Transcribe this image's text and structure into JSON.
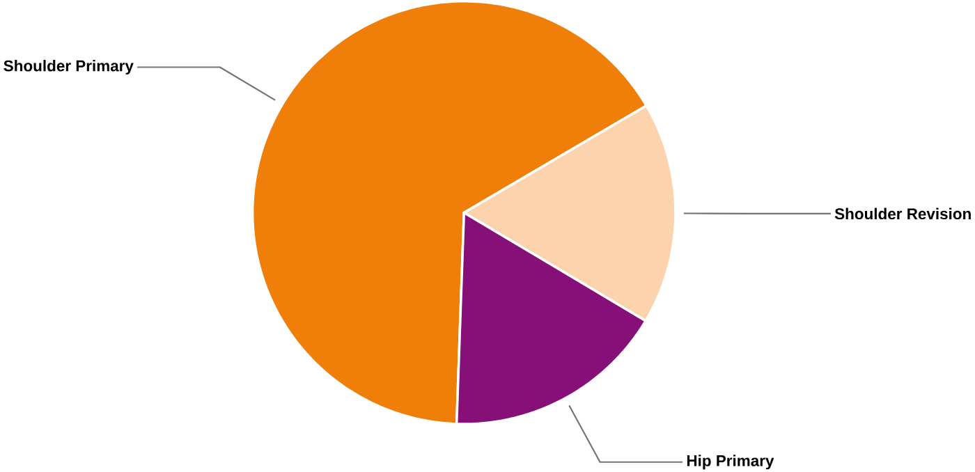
{
  "chart_data": {
    "type": "pie",
    "categories": [
      "Shoulder Primary",
      "Shoulder Revision",
      "Hip Primary"
    ],
    "values": [
      66,
      17,
      17
    ],
    "colors": [
      "#f07f09",
      "#fcd3ac",
      "#870f78"
    ]
  }
}
